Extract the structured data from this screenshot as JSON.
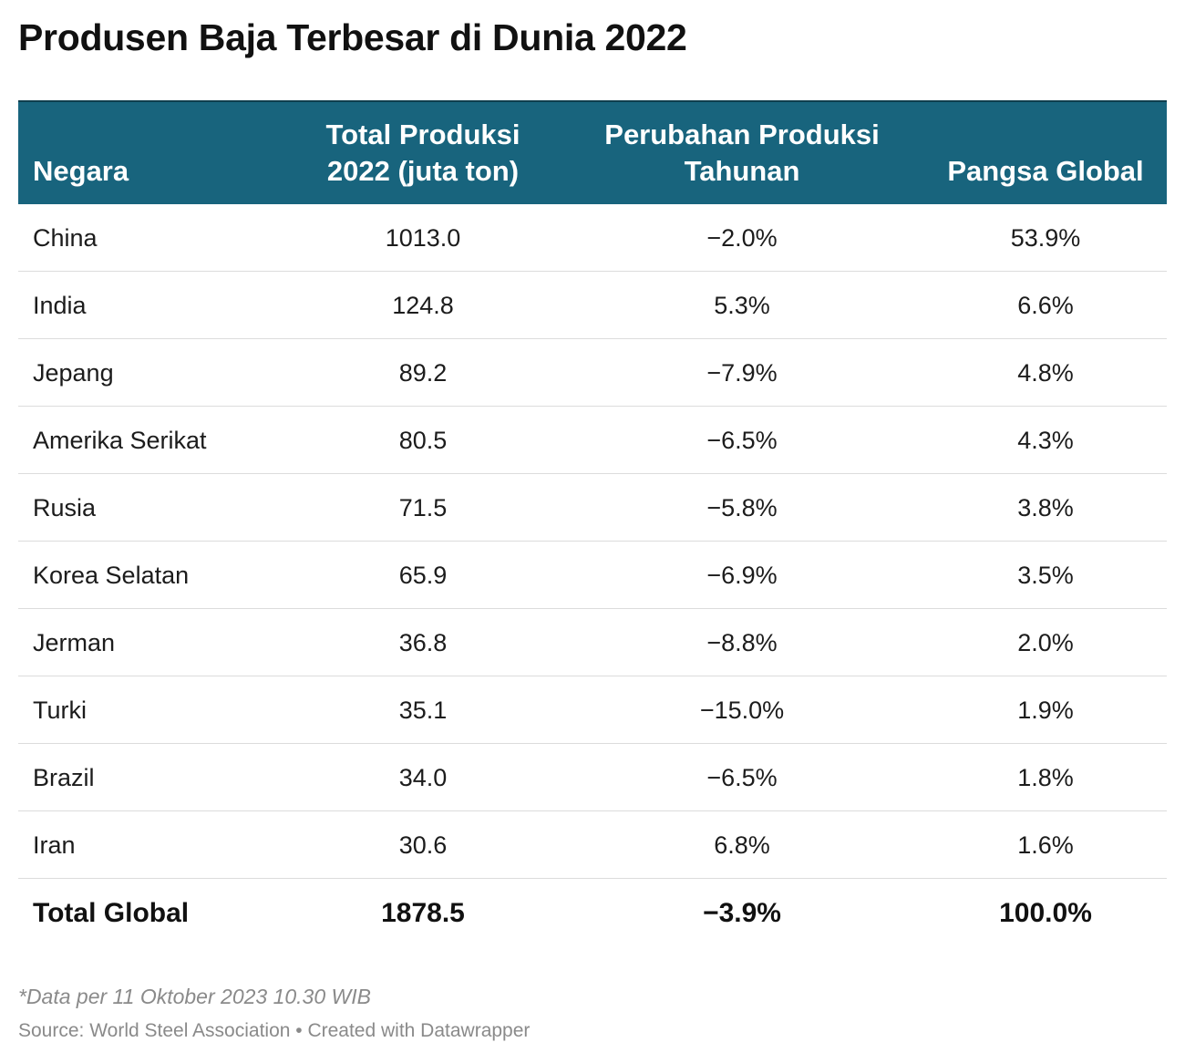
{
  "title": "Produsen Baja Terbesar di Dunia 2022",
  "table": {
    "headers": [
      {
        "lines": [
          "Negara"
        ]
      },
      {
        "lines": [
          "Total Produksi",
          "2022 (juta ton)"
        ]
      },
      {
        "lines": [
          "Perubahan Produksi",
          "Tahunan"
        ]
      },
      {
        "lines": [
          "Pangsa Global"
        ]
      }
    ],
    "rows": [
      [
        "China",
        "1013.0",
        "−2.0%",
        "53.9%"
      ],
      [
        "India",
        "124.8",
        "5.3%",
        "6.6%"
      ],
      [
        "Jepang",
        "89.2",
        "−7.9%",
        "4.8%"
      ],
      [
        "Amerika Serikat",
        "80.5",
        "−6.5%",
        "4.3%"
      ],
      [
        "Rusia",
        "71.5",
        "−5.8%",
        "3.8%"
      ],
      [
        "Korea Selatan",
        "65.9",
        "−6.9%",
        "3.5%"
      ],
      [
        "Jerman",
        "36.8",
        "−8.8%",
        "2.0%"
      ],
      [
        "Turki",
        "35.1",
        "−15.0%",
        "1.9%"
      ],
      [
        "Brazil",
        "34.0",
        "−6.5%",
        "1.8%"
      ],
      [
        "Iran",
        "30.6",
        "6.8%",
        "1.6%"
      ]
    ],
    "total": [
      "Total Global",
      "1878.5",
      "−3.9%",
      "100.0%"
    ]
  },
  "note": "*Data per 11 Oktober 2023 10.30 WIB",
  "source": "Source: World Steel Association • Created with Datawrapper",
  "colors": {
    "header_bg": "#18647d",
    "header_text": "#ffffff",
    "row_divider": "#dcdcdc",
    "footnote_text": "#8a8a8a"
  },
  "chart_data": {
    "type": "table",
    "title": "Produsen Baja Terbesar di Dunia 2022",
    "columns": [
      "Negara",
      "Total Produksi 2022 (juta ton)",
      "Perubahan Produksi Tahunan",
      "Pangsa Global"
    ],
    "rows": [
      [
        "China",
        1013.0,
        -2.0,
        53.9
      ],
      [
        "India",
        124.8,
        5.3,
        6.6
      ],
      [
        "Jepang",
        89.2,
        -7.9,
        4.8
      ],
      [
        "Amerika Serikat",
        80.5,
        -6.5,
        4.3
      ],
      [
        "Rusia",
        71.5,
        -5.8,
        3.8
      ],
      [
        "Korea Selatan",
        65.9,
        -6.9,
        3.5
      ],
      [
        "Jerman",
        36.8,
        -8.8,
        2.0
      ],
      [
        "Turki",
        35.1,
        -15.0,
        1.9
      ],
      [
        "Brazil",
        34.0,
        -6.5,
        1.8
      ],
      [
        "Iran",
        30.6,
        6.8,
        1.6
      ]
    ],
    "total": [
      "Total Global",
      1878.5,
      -3.9,
      100.0
    ]
  }
}
